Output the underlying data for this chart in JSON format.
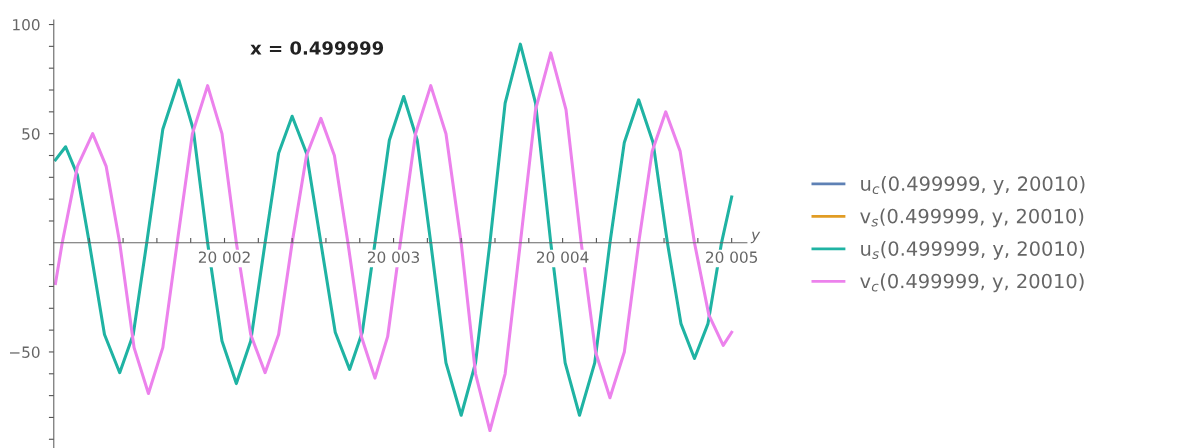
{
  "chart_data": {
    "type": "line",
    "title": "x = 0.499999",
    "xlabel": "y",
    "xlim": [
      20000.99,
      20005.09
    ],
    "ylim": [
      -94,
      102
    ],
    "xticks": [
      {
        "value": 20001.2,
        "label": null
      },
      {
        "value": 20001.4,
        "label": null
      },
      {
        "value": 20001.6,
        "label": null
      },
      {
        "value": 20001.8,
        "label": null
      },
      {
        "value": 20002,
        "label": "20 002"
      },
      {
        "value": 20002.2,
        "label": null
      },
      {
        "value": 20002.4,
        "label": null
      },
      {
        "value": 20002.6,
        "label": null
      },
      {
        "value": 20002.8,
        "label": null
      },
      {
        "value": 20003,
        "label": "20 003"
      },
      {
        "value": 20003.2,
        "label": null
      },
      {
        "value": 20003.4,
        "label": null
      },
      {
        "value": 20003.6,
        "label": null
      },
      {
        "value": 20003.8,
        "label": null
      },
      {
        "value": 20004,
        "label": "20 004"
      },
      {
        "value": 20004.2,
        "label": null
      },
      {
        "value": 20004.4,
        "label": null
      },
      {
        "value": 20004.6,
        "label": null
      },
      {
        "value": 20004.8,
        "label": null
      },
      {
        "value": 20005,
        "label": "20 005"
      }
    ],
    "yticks": [
      {
        "value": -90,
        "label": null
      },
      {
        "value": -80,
        "label": null
      },
      {
        "value": -70,
        "label": null
      },
      {
        "value": -60,
        "label": null
      },
      {
        "value": -50,
        "label": "−50"
      },
      {
        "value": -40,
        "label": null
      },
      {
        "value": -30,
        "label": null
      },
      {
        "value": -20,
        "label": null
      },
      {
        "value": -10,
        "label": null
      },
      {
        "value": 10,
        "label": null
      },
      {
        "value": 20,
        "label": null
      },
      {
        "value": 30,
        "label": null
      },
      {
        "value": 40,
        "label": null
      },
      {
        "value": 50,
        "label": "50"
      },
      {
        "value": 60,
        "label": null
      },
      {
        "value": 70,
        "label": null
      },
      {
        "value": 80,
        "label": null
      },
      {
        "value": 90,
        "label": null
      },
      {
        "value": 100,
        "label": "100"
      }
    ],
    "grid": false,
    "legend": "right",
    "marker": "none",
    "line_style": "solid",
    "series": [
      {
        "name": "u$_{c}$(0.499999, y, 20010)",
        "color": "#5e81b5"
      },
      {
        "name": "v$_{s}$(0.499999, y, 20010)",
        "color": "#e19c24"
      },
      {
        "name": "u$_{s}$(0.499999, y, 20010)",
        "color": "#1fb3a3",
        "x": [
          20001.0,
          20001.06,
          20001.13,
          20001.2,
          20001.29,
          20001.38,
          20001.46,
          20001.54,
          20001.635,
          20001.73,
          20001.815,
          20001.9,
          20001.985,
          20002.07,
          20002.155,
          20002.24,
          20002.32,
          20002.4,
          20002.485,
          20002.57,
          20002.655,
          20002.74,
          20002.815,
          20002.89,
          20002.975,
          20003.06,
          20003.14,
          20003.22,
          20003.31,
          20003.4,
          20003.485,
          20003.57,
          20003.66,
          20003.75,
          20003.84,
          20003.93,
          20004.015,
          20004.1,
          20004.19,
          20004.28,
          20004.365,
          20004.45,
          20004.535,
          20004.62,
          20004.7,
          20004.78,
          20004.86,
          20004.94,
          20005.0
        ],
        "values": [
          38,
          44,
          31,
          0,
          -42,
          -59.5,
          -42,
          0,
          52,
          74.5,
          52,
          0,
          -45,
          -64.5,
          -45,
          0,
          41,
          58,
          41,
          0,
          -41,
          -58,
          -41,
          0,
          47,
          67,
          47,
          0,
          -55,
          -79,
          -55,
          0,
          64,
          91,
          64,
          0,
          -55,
          -79,
          -55,
          0,
          46,
          65.5,
          46,
          0,
          -37,
          -53,
          -37,
          0,
          21
        ]
      },
      {
        "name": "v$_{c}$(0.499999, y, 20010)",
        "color": "#ec82ec",
        "x": [
          20001.0,
          20001.04,
          20001.13,
          20001.22,
          20001.3,
          20001.38,
          20001.465,
          20001.55,
          20001.635,
          20001.72,
          20001.81,
          20001.9,
          20001.985,
          20002.07,
          20002.155,
          20002.24,
          20002.32,
          20002.4,
          20002.485,
          20002.57,
          20002.65,
          20002.73,
          20002.81,
          20002.89,
          20002.965,
          20003.04,
          20003.13,
          20003.22,
          20003.31,
          20003.4,
          20003.485,
          20003.57,
          20003.66,
          20003.75,
          20003.84,
          20003.93,
          20004.02,
          20004.11,
          20004.195,
          20004.28,
          20004.365,
          20004.45,
          20004.53,
          20004.61,
          20004.695,
          20004.78,
          20004.865,
          20004.95,
          20005.0
        ],
        "values": [
          -18.6,
          0,
          35,
          50,
          35,
          0,
          -48,
          -69,
          -48,
          0,
          50,
          72,
          50,
          0,
          -42,
          -59.5,
          -42,
          0,
          40,
          57,
          40,
          0,
          -43,
          -62,
          -43,
          0,
          50,
          72,
          50,
          0,
          -60,
          -86,
          -60,
          0,
          61,
          87,
          61,
          0,
          -50,
          -71,
          -50,
          0,
          42,
          60,
          42,
          0,
          -33,
          -47,
          -41
        ]
      }
    ]
  }
}
